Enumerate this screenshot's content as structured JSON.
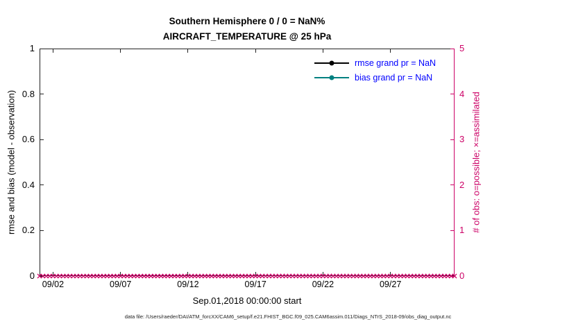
{
  "title": "Southern Hemisphere 0 / 0 = NaN%",
  "subtitle": "AIRCRAFT_TEMPERATURE @ 25 hPa",
  "xlabel": "Sep.01,2018 00:00:00 start",
  "ylabel_left": "rmse and bias (model - observation)",
  "ylabel_right": "# of obs: o=possible; ×=assimilated",
  "caption": "data file: /Users/raeder/DAI/ATM_forcXX/CAM6_setup/f.e21.FHIST_BGC.f09_025.CAM6assim.011/Diags_NTrS_2018-09/obs_diag_output.nc",
  "colors": {
    "background": "#FFFFFF",
    "axis": "#222222",
    "right_axis": "#CC0066",
    "marker": "#CC0066",
    "rmse": "#000000",
    "bias": "#008080",
    "legend_text": "#0000FF"
  },
  "legend": {
    "items": [
      {
        "label": "rmse grand pr = NaN",
        "color": "#000000"
      },
      {
        "label": "bias grand pr = NaN",
        "color": "#008080"
      }
    ]
  },
  "chart_data": {
    "type": "line",
    "title": "Southern Hemisphere 0 / 0 = NaN%",
    "subtitle": "AIRCRAFT_TEMPERATURE @ 25 hPa",
    "xlabel": "Sep.01,2018 00:00:00 start",
    "ylabel_left": "rmse and bias (model - observation)",
    "ylabel_right": "# of obs: o=possible; ×=assimilated",
    "grid": false,
    "legend_position": "top-right-inside",
    "x_axis": {
      "start": "Sep.01,2018 00:00:00",
      "unit": "days since start",
      "range_days": [
        0,
        30.75
      ],
      "ticks": [
        {
          "day": 1,
          "label": "09/02"
        },
        {
          "day": 6,
          "label": "09/07"
        },
        {
          "day": 11,
          "label": "09/12"
        },
        {
          "day": 16,
          "label": "09/17"
        },
        {
          "day": 21,
          "label": "09/22"
        },
        {
          "day": 26,
          "label": "09/27"
        }
      ]
    },
    "y_axis_left": {
      "lim": [
        0,
        1
      ],
      "ticks": [
        0,
        0.2,
        0.4,
        0.6,
        0.8,
        1
      ]
    },
    "y_axis_right": {
      "lim": [
        0,
        5
      ],
      "ticks": [
        0,
        1,
        2,
        3,
        4,
        5
      ]
    },
    "series": [
      {
        "name": "rmse grand pr = NaN",
        "color": "#000000",
        "values": null,
        "note": "all NaN - no line drawn"
      },
      {
        "name": "bias grand pr = NaN",
        "color": "#008080",
        "values": null,
        "note": "all NaN - no line drawn"
      },
      {
        "name": "assimilated obs count",
        "marker": "x",
        "color": "#CC0066",
        "axis": "right",
        "y_constant": 0,
        "start_day": 0,
        "interval_days": 0.25,
        "count": 124,
        "note": "row of × markers at y=0 across full time range"
      },
      {
        "name": "possible obs count",
        "marker": "o",
        "color": "#CC0066",
        "axis": "right",
        "y_constant": 0,
        "start_day": 0,
        "interval_days": 0.25,
        "count": 124,
        "note": "coincident with × markers at y=0, not separately distinguishable"
      }
    ]
  }
}
